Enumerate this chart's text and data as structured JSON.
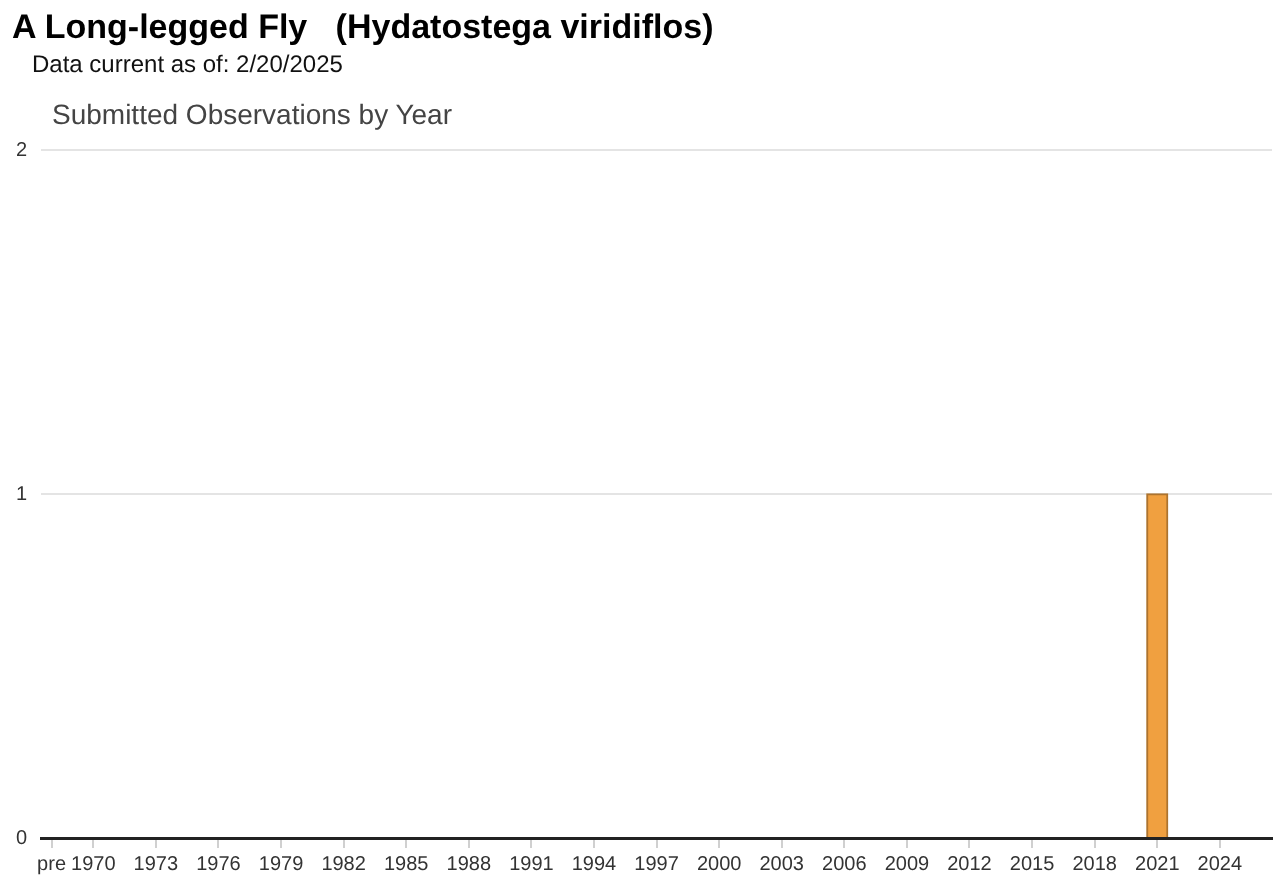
{
  "chart_data": {
    "type": "bar",
    "title": "A Long-legged Fly   (Hydatostega viridiflos)",
    "subtitle": "Submitted Observations by Year",
    "annotations": [
      "Data current as of: 2/20/2025"
    ],
    "categories": [
      "pre",
      null,
      "1970",
      null,
      null,
      "1973",
      null,
      null,
      "1976",
      null,
      null,
      "1979",
      null,
      null,
      "1982",
      null,
      null,
      "1985",
      null,
      null,
      "1988",
      null,
      null,
      "1991",
      null,
      null,
      "1994",
      null,
      null,
      "1997",
      null,
      null,
      "2000",
      null,
      null,
      "2003",
      null,
      null,
      "2006",
      null,
      null,
      "2009",
      null,
      null,
      "2012",
      null,
      null,
      "2015",
      null,
      null,
      "2018",
      null,
      null,
      "2021",
      null,
      null,
      "2024",
      null,
      null
    ],
    "values": [
      0,
      0,
      0,
      0,
      0,
      0,
      0,
      0,
      0,
      0,
      0,
      0,
      0,
      0,
      0,
      0,
      0,
      0,
      0,
      0,
      0,
      0,
      0,
      0,
      0,
      0,
      0,
      0,
      0,
      0,
      0,
      0,
      0,
      0,
      0,
      0,
      0,
      0,
      0,
      0,
      0,
      0,
      0,
      0,
      0,
      0,
      0,
      0,
      0,
      0,
      0,
      0,
      0,
      1,
      0,
      0,
      0,
      0,
      0
    ],
    "color": "#f0a040",
    "ylim": [
      0,
      2
    ],
    "yticks": [
      0,
      1,
      2
    ],
    "grid": "y"
  }
}
